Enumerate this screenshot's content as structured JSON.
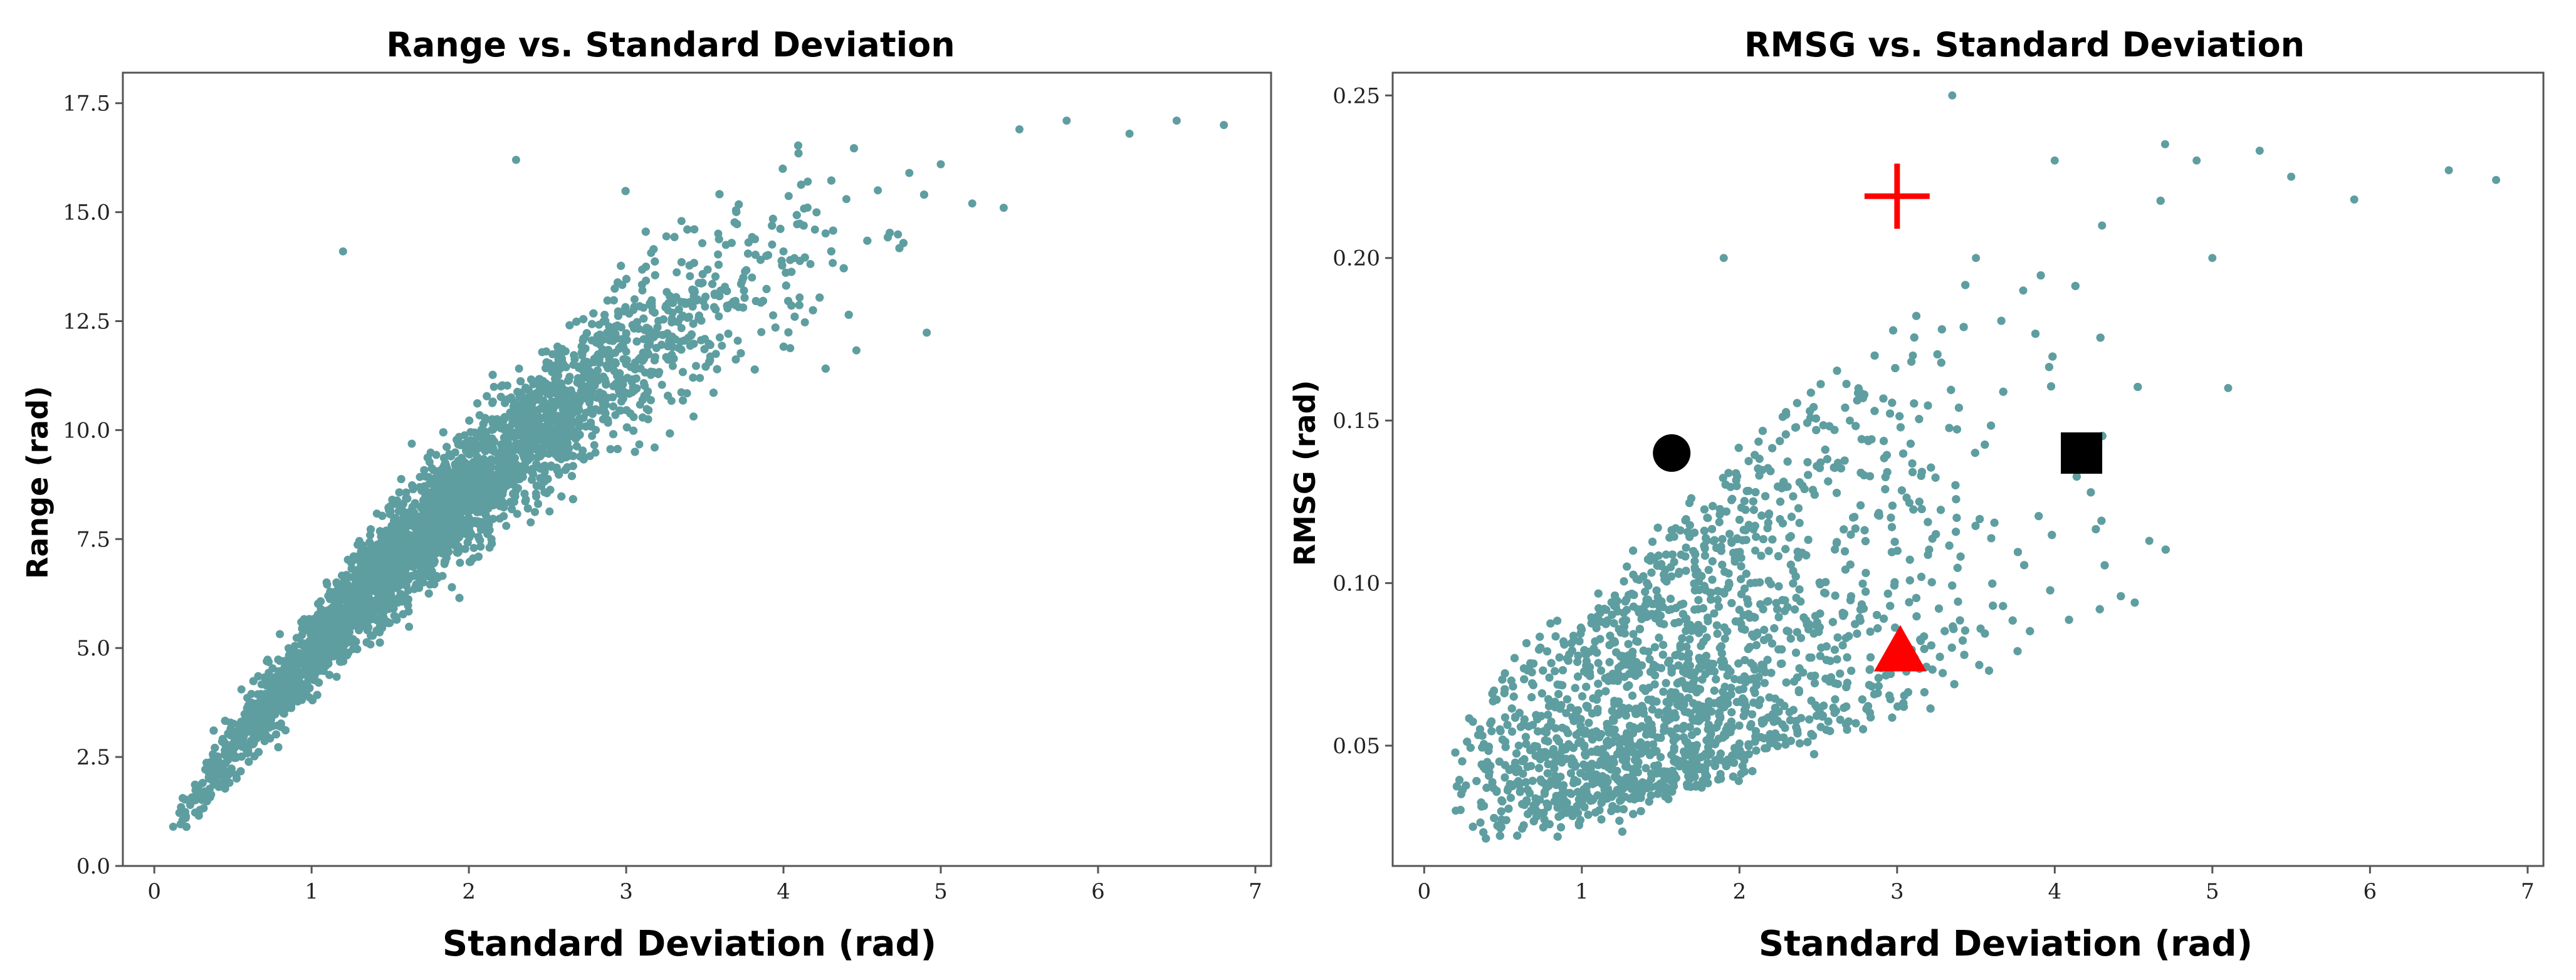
{
  "chart_data": [
    {
      "type": "scatter",
      "title": "Range vs. Standard Deviation",
      "xlabel": "Standard Deviation (rad)",
      "ylabel": "Range (rad)",
      "xlim": [
        -0.2,
        7.1
      ],
      "ylim": [
        0,
        18.2
      ],
      "xticks": [
        0,
        1,
        2,
        3,
        4,
        5,
        6,
        7
      ],
      "xtick_labels": [
        "0",
        "1",
        "2",
        "3",
        "4",
        "5",
        "6",
        "7"
      ],
      "yticks": [
        0,
        2.5,
        5,
        7.5,
        10,
        12.5,
        15,
        17.5
      ],
      "ytick_labels": [
        "0.0",
        "2.5",
        "5.0",
        "7.5",
        "10.0",
        "12.5",
        "15.0",
        "17.5"
      ],
      "point_color": "#5f9ea0",
      "series": [
        {
          "name": "samples",
          "trend": [
            [
              0.1,
              0.8
            ],
            [
              0.5,
              2.7
            ],
            [
              1.0,
              4.9
            ],
            [
              1.5,
              6.9
            ],
            [
              2.0,
              8.6
            ],
            [
              2.5,
              10.2
            ],
            [
              3.0,
              11.6
            ],
            [
              3.5,
              12.8
            ],
            [
              4.0,
              13.9
            ],
            [
              4.5,
              14.9
            ],
            [
              5.0,
              15.6
            ],
            [
              6.0,
              16.6
            ],
            [
              7.0,
              17.1
            ]
          ],
          "sampled_points": [
            [
              0.12,
              0.9
            ],
            [
              0.2,
              1.1
            ],
            [
              0.35,
              2.0
            ],
            [
              0.5,
              2.6
            ],
            [
              0.7,
              3.6
            ],
            [
              0.9,
              4.4
            ],
            [
              1.1,
              5.3
            ],
            [
              1.2,
              14.1
            ],
            [
              1.3,
              6.0
            ],
            [
              1.5,
              6.8
            ],
            [
              1.7,
              7.5
            ],
            [
              1.9,
              8.3
            ],
            [
              2.0,
              8.9
            ],
            [
              2.2,
              9.3
            ],
            [
              2.3,
              16.2
            ],
            [
              2.4,
              9.9
            ],
            [
              2.6,
              10.5
            ],
            [
              2.8,
              11.1
            ],
            [
              3.0,
              11.8
            ],
            [
              3.2,
              12.2
            ],
            [
              3.4,
              12.6
            ],
            [
              3.6,
              13.2
            ],
            [
              3.8,
              13.5
            ],
            [
              4.0,
              14.1
            ],
            [
              4.2,
              14.6
            ],
            [
              4.4,
              15.3
            ],
            [
              4.6,
              15.5
            ],
            [
              4.8,
              15.9
            ],
            [
              5.0,
              16.1
            ],
            [
              5.2,
              15.2
            ],
            [
              5.4,
              15.1
            ],
            [
              5.5,
              16.9
            ],
            [
              5.8,
              17.1
            ],
            [
              6.2,
              16.8
            ],
            [
              6.5,
              17.1
            ],
            [
              6.8,
              17.0
            ]
          ]
        }
      ]
    },
    {
      "type": "scatter",
      "title": "RMSG vs. Standard Deviation",
      "xlabel": "Standard Deviation (rad)",
      "ylabel": "RMSG (rad)",
      "xlim": [
        -0.2,
        7.1
      ],
      "ylim": [
        0.013,
        0.257
      ],
      "xticks": [
        0,
        1,
        2,
        3,
        4,
        5,
        6,
        7
      ],
      "xtick_labels": [
        "0",
        "1",
        "2",
        "3",
        "4",
        "5",
        "6",
        "7"
      ],
      "yticks": [
        0.05,
        0.1,
        0.15,
        0.2,
        0.25
      ],
      "ytick_labels": [
        "0.05",
        "0.10",
        "0.15",
        "0.20",
        "0.25"
      ],
      "point_color": "#5f9ea0",
      "series": [
        {
          "name": "samples",
          "trend_low": [
            [
              0.2,
              0.025
            ],
            [
              1.0,
              0.03
            ],
            [
              2.0,
              0.045
            ],
            [
              3.0,
              0.065
            ],
            [
              4.0,
              0.085
            ],
            [
              5.0,
              0.11
            ]
          ],
          "trend_high": [
            [
              0.2,
              0.06
            ],
            [
              1.0,
              0.09
            ],
            [
              2.0,
              0.14
            ],
            [
              3.0,
              0.18
            ],
            [
              4.0,
              0.2
            ],
            [
              5.0,
              0.22
            ]
          ],
          "sampled_points": [
            [
              0.2,
              0.03
            ],
            [
              0.4,
              0.045
            ],
            [
              0.6,
              0.05
            ],
            [
              0.9,
              0.06
            ],
            [
              1.2,
              0.07
            ],
            [
              1.5,
              0.09
            ],
            [
              1.8,
              0.12
            ],
            [
              1.9,
              0.2
            ],
            [
              2.1,
              0.11
            ],
            [
              2.4,
              0.13
            ],
            [
              2.7,
              0.15
            ],
            [
              3.1,
              0.17
            ],
            [
              3.35,
              0.25
            ],
            [
              3.5,
              0.2
            ],
            [
              3.8,
              0.19
            ],
            [
              4.0,
              0.23
            ],
            [
              4.3,
              0.21
            ],
            [
              4.7,
              0.235
            ],
            [
              4.9,
              0.23
            ],
            [
              5.3,
              0.233
            ],
            [
              5.5,
              0.225
            ],
            [
              5.9,
              0.218
            ],
            [
              6.5,
              0.227
            ],
            [
              6.8,
              0.224
            ],
            [
              5.0,
              0.2
            ],
            [
              4.6,
              0.113
            ],
            [
              5.1,
              0.16
            ]
          ]
        }
      ],
      "markers": [
        {
          "name": "black-circle",
          "shape": "circle",
          "color": "#000000",
          "x": 1.57,
          "y": 0.14
        },
        {
          "name": "black-square",
          "shape": "square",
          "color": "#000000",
          "x": 4.17,
          "y": 0.14
        },
        {
          "name": "red-plus",
          "shape": "plus",
          "color": "#ff0000",
          "x": 3.0,
          "y": 0.219
        },
        {
          "name": "red-triangle",
          "shape": "triangle",
          "color": "#ff0000",
          "x": 3.02,
          "y": 0.079
        }
      ]
    }
  ]
}
